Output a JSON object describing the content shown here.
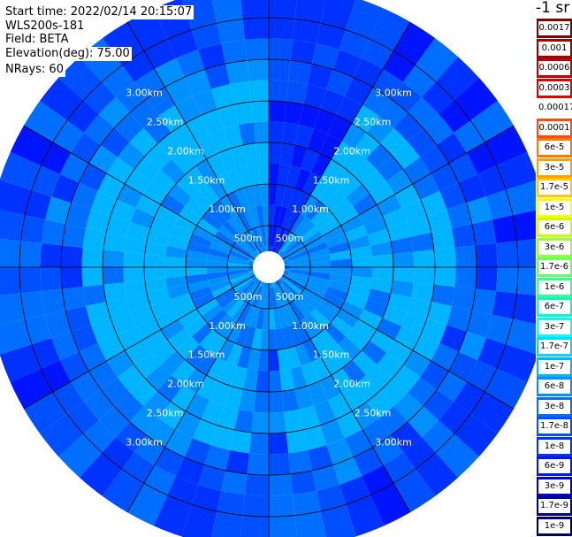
{
  "header": {
    "start_time": "Start time: 2022/02/14 20:15:07",
    "instrument": "WLS200s-181",
    "field": "Field: BETA",
    "elevation": "Elevation(deg): 75.00",
    "nrays": "NRays: 60"
  },
  "colorbar": {
    "title": "-1 sr",
    "levels": [
      {
        "label": "0.0017",
        "color": "#800000"
      },
      {
        "label": "0.001",
        "color": "#a00000"
      },
      {
        "label": "0.0006",
        "color": "#c00000"
      },
      {
        "label": "0.0003",
        "color": "#e00000"
      },
      {
        "label": "0.00017",
        "color": "#ffffff"
      },
      {
        "label": "0.0001",
        "color": "#ff4a00"
      },
      {
        "label": "6e-5",
        "color": "#ff7800"
      },
      {
        "label": "3e-5",
        "color": "#ffa000"
      },
      {
        "label": "1.7e-5",
        "color": "#ffc800"
      },
      {
        "label": "1e-5",
        "color": "#ffff00"
      },
      {
        "label": "6e-6",
        "color": "#c8ff00"
      },
      {
        "label": "3e-6",
        "color": "#96ff3c"
      },
      {
        "label": "1.7e-6",
        "color": "#64ff64"
      },
      {
        "label": "1e-6",
        "color": "#32ff96"
      },
      {
        "label": "6e-7",
        "color": "#00ffc8"
      },
      {
        "label": "3e-7",
        "color": "#00ffff"
      },
      {
        "label": "1.7e-7",
        "color": "#00d8ff"
      },
      {
        "label": "1e-7",
        "color": "#00b4ff"
      },
      {
        "label": "6e-8",
        "color": "#0090ff"
      },
      {
        "label": "3e-8",
        "color": "#006eff"
      },
      {
        "label": "1.7e-8",
        "color": "#0050ff"
      },
      {
        "label": "1e-8",
        "color": "#0032ff"
      },
      {
        "label": "6e-9",
        "color": "#0014ff"
      },
      {
        "label": "3e-9",
        "color": "#0000c8"
      },
      {
        "label": "1.7e-9",
        "color": "#000096"
      },
      {
        "label": "1e-9",
        "color": "#000064"
      }
    ]
  },
  "range_rings": {
    "labels": [
      "500m",
      "1.00km",
      "1.50km",
      "2.00km",
      "2.50km",
      "3.00km"
    ]
  },
  "scan": {
    "nrays": 60,
    "ngates": 12,
    "colors": {
      "lightest": "#00b4ff",
      "medium": "#0090ff",
      "base": "#006eff",
      "darker": "#0050ff",
      "dark": "#0032ff",
      "darkest": "#0014ff",
      "background": "#ffffff",
      "ring": "#000000",
      "label": "#ffffff"
    }
  }
}
